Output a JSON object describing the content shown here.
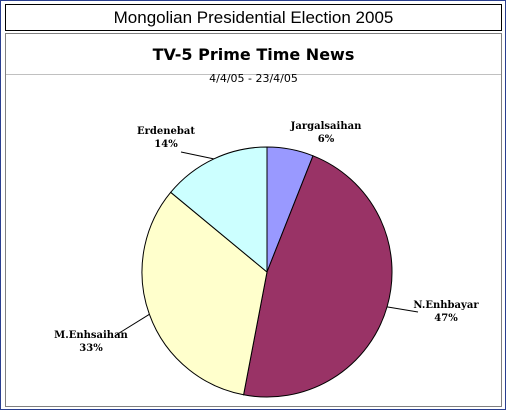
{
  "window": {
    "title": "Mongolian Presidential Election 2005"
  },
  "chart_data": {
    "type": "pie",
    "title": "TV-5  Prime Time News",
    "subtitle": "4/4/05 - 23/4/05",
    "categories": [
      "Jargalsaihan",
      "N.Enhbayar",
      "M.Enhsaihan",
      "Erdenebat"
    ],
    "values": [
      6,
      47,
      33,
      14
    ],
    "percent_labels": [
      "6%",
      "47%",
      "33%",
      "14%"
    ],
    "colors": [
      "#9999ff",
      "#993366",
      "#ffffcc",
      "#ccffff"
    ],
    "start_angle": "12 o'clock",
    "direction": "clockwise",
    "legend": "none"
  }
}
